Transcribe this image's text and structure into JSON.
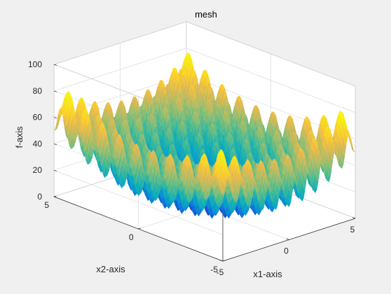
{
  "chart_data": {
    "type": "surface",
    "title": "mesh",
    "xlabel": "x1-axis",
    "ylabel": "x2-axis",
    "zlabel": "f-axis",
    "xlim": [
      -5,
      5
    ],
    "ylim": [
      -5,
      5
    ],
    "zlim": [
      0,
      100
    ],
    "x_ticks": [
      "-5",
      "0",
      "5"
    ],
    "y_ticks": [
      "-5",
      "0",
      "5"
    ],
    "z_ticks": [
      "0",
      "20",
      "40",
      "60",
      "80",
      "100"
    ],
    "grid": true,
    "colormap": "parula",
    "function": "f(x1,x2) = 20 + x1^2 + x2^2 - 10*cos(2*pi*x1) - 10*cos(2*pi*x2)",
    "grid_resolution": 0.1
  }
}
